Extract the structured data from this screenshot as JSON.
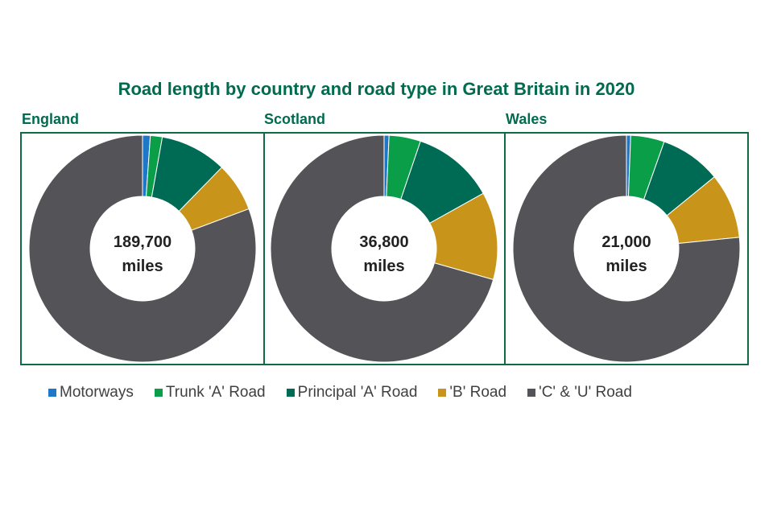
{
  "chart_data": {
    "type": "pie",
    "title": "Road length by country and road type in Great Britain in 2020",
    "categories": [
      "Motorways",
      "Trunk 'A' Road",
      "Principal 'A' Road",
      "'B' Road",
      "'C' & 'U' Road"
    ],
    "colors": [
      "#1f77c8",
      "#0a9e48",
      "#006b54",
      "#c8951a",
      "#545458"
    ],
    "legend_position": "bottom",
    "panels": [
      {
        "name": "England",
        "center_value": "189,700",
        "center_unit": "miles",
        "values": [
          1.1,
          1.7,
          9.5,
          7.0,
          80.7
        ]
      },
      {
        "name": "Scotland",
        "center_value": "36,800",
        "center_unit": "miles",
        "values": [
          0.7,
          4.5,
          11.7,
          12.5,
          70.6
        ]
      },
      {
        "name": "Wales",
        "center_value": "21,000",
        "center_unit": "miles",
        "values": [
          0.6,
          4.8,
          8.7,
          9.3,
          76.6
        ]
      }
    ]
  }
}
